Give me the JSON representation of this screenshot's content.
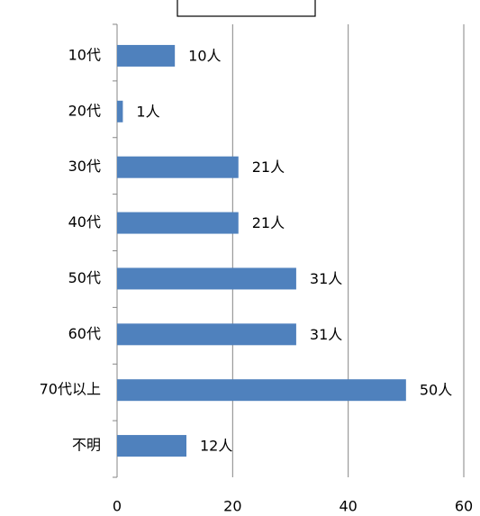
{
  "chart_data": {
    "type": "bar",
    "orientation": "horizontal",
    "categories": [
      "10代",
      "20代",
      "30代",
      "40代",
      "50代",
      "60代",
      "70代以上",
      "不明"
    ],
    "values": [
      10,
      1,
      21,
      21,
      31,
      31,
      50,
      12
    ],
    "value_labels": [
      "10人",
      "1人",
      "21人",
      "21人",
      "31人",
      "31人",
      "50人",
      "12人"
    ],
    "color": "#4f81bd",
    "xlim": [
      0,
      60
    ],
    "xticks": [
      0,
      20,
      40,
      60
    ],
    "grid": true
  }
}
